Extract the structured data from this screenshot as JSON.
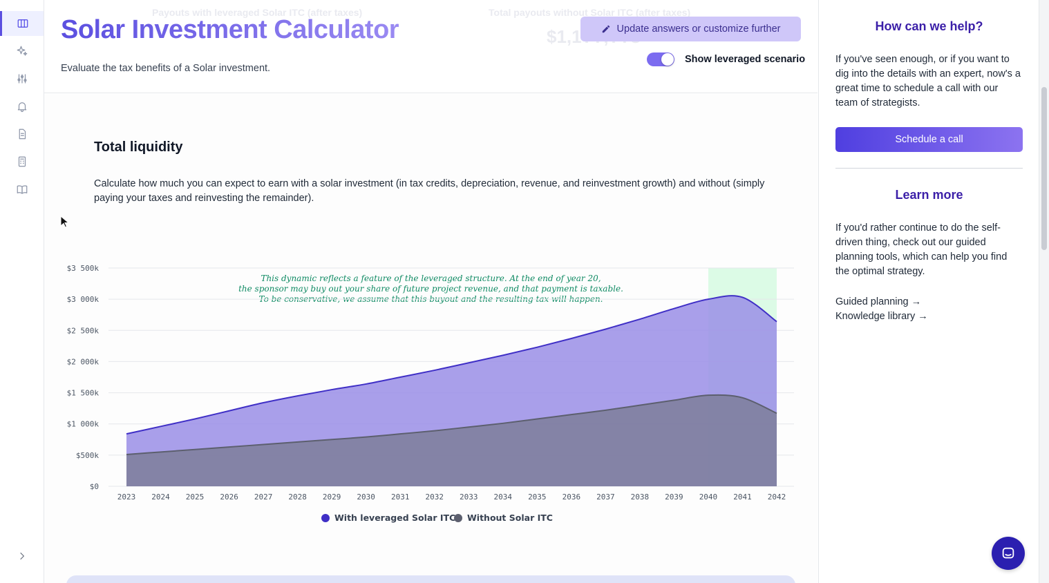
{
  "sidebar": {
    "items": [
      {
        "icon": "columns-icon",
        "active": true
      },
      {
        "icon": "sparkles-icon",
        "active": false
      },
      {
        "icon": "sliders-icon",
        "active": false
      },
      {
        "icon": "bell-icon",
        "active": false
      },
      {
        "icon": "document-icon",
        "active": false
      },
      {
        "icon": "calculator-icon",
        "active": false
      },
      {
        "icon": "book-icon",
        "active": false
      }
    ],
    "expand_icon": "chevron-right-icon"
  },
  "header": {
    "ghost_left_label": "Payouts with leveraged Solar ITC (after taxes)",
    "ghost_right_label": "Total payouts without Solar ITC (after taxes)",
    "ghost_right_value": "$1,1??,??8",
    "title": "Solar Investment Calculator",
    "subtitle": "Evaluate the tax benefits of a Solar investment.",
    "update_button": "Update answers or customize further",
    "toggle_label": "Show leveraged scenario",
    "toggle_on": true
  },
  "section": {
    "title": "Total liquidity",
    "description": "Calculate how much you can expect to earn with a solar investment (in tax credits, depreciation, revenue, and reinvestment growth) and without (simply paying your taxes and reinvesting the remainder)."
  },
  "chart_data": {
    "type": "area",
    "x": [
      2023,
      2024,
      2025,
      2026,
      2027,
      2028,
      2029,
      2030,
      2031,
      2032,
      2033,
      2034,
      2035,
      2036,
      2037,
      2038,
      2039,
      2040,
      2041,
      2042
    ],
    "y_ticks": [
      "$0",
      "$500k",
      "$1 000k",
      "$1 500k",
      "$2 000k",
      "$2 500k",
      "$3 000k",
      "$3 500k"
    ],
    "ylim": [
      0,
      3500000
    ],
    "series": [
      {
        "name": "With leveraged Solar ITC",
        "color": "#3f2fc6",
        "fill": "#9a8ee6",
        "values": [
          840000,
          960000,
          1080000,
          1210000,
          1340000,
          1450000,
          1550000,
          1640000,
          1750000,
          1860000,
          1980000,
          2100000,
          2230000,
          2370000,
          2520000,
          2680000,
          2850000,
          3000000,
          3030000,
          2640000
        ]
      },
      {
        "name": "Without Solar ITC",
        "color": "#5c5f6e",
        "fill": "#80809e",
        "values": [
          510000,
          550000,
          590000,
          630000,
          670000,
          710000,
          750000,
          790000,
          840000,
          890000,
          950000,
          1010000,
          1080000,
          1150000,
          1220000,
          1300000,
          1380000,
          1460000,
          1420000,
          1170000
        ]
      }
    ],
    "highlight": {
      "from": 2040,
      "to": 2042,
      "color": "#dcfbe6"
    },
    "annotation": [
      "This dynamic reflects a feature of the leveraged structure. At the end of year 20,",
      "the sponsor may buy out your share of future project revenue, and that payment is taxable.",
      "To be conservative, we assume that this buyout and the resulting tax will happen."
    ],
    "grid": true,
    "legend": "bottom-center"
  },
  "right_panel": {
    "help_title": "How can we help?",
    "help_text": "If you've seen enough, or if you want to dig into the details with an expert, now's a great time to schedule a call with our team of strategists.",
    "schedule_button": "Schedule a call",
    "learn_title": "Learn more",
    "learn_text": "If you'd rather continue to do the self-driven thing, check out our guided planning tools, which can help you find the optimal strategy.",
    "links": [
      "Guided planning →",
      "Knowledge library →"
    ]
  },
  "chat": {
    "icon": "chat-icon"
  }
}
